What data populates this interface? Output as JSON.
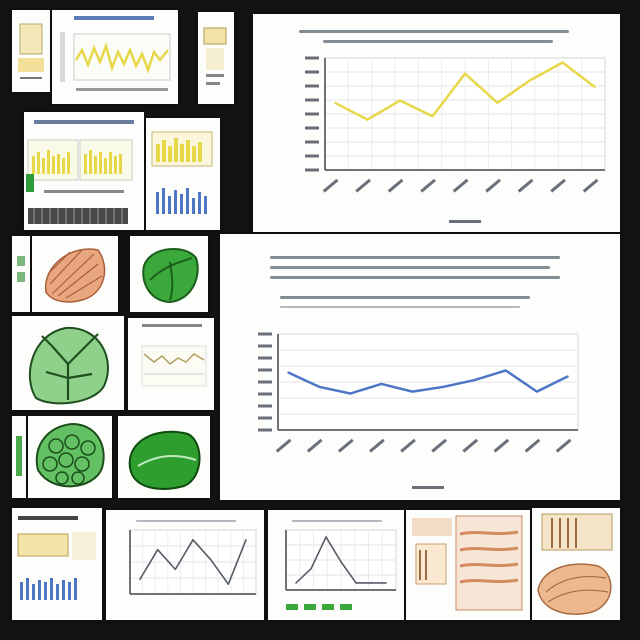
{
  "collage": {
    "background": "#121212",
    "chart_colors": {
      "yellow": "#e7d84a",
      "blue": "#4d77c4",
      "green": "#3aa83a",
      "peach": "#e9a77f",
      "grey_line": "#555c66"
    }
  },
  "chart_data": [
    {
      "type": "line",
      "series": [
        {
          "values": [
            6,
            4.5,
            6.2,
            4.8,
            8.6,
            6,
            8,
            9.6,
            7.4
          ]
        }
      ],
      "ylim": [
        0,
        10
      ],
      "grid": true
    },
    {
      "type": "line",
      "series": [
        {
          "values": [
            6,
            4.5,
            3.8,
            4.8,
            4,
            4.5,
            5.2,
            6.2,
            4,
            5.6
          ]
        }
      ],
      "ylim": [
        0,
        10
      ],
      "grid": true
    },
    {
      "type": "line",
      "series": [
        {
          "values": [
            3,
            6,
            4,
            7,
            5,
            2.5,
            7
          ]
        }
      ],
      "grid": true
    },
    {
      "type": "line",
      "series": [
        {
          "values": [
            1,
            3,
            7.5,
            4,
            1,
            1,
            1
          ]
        }
      ],
      "grid": true
    }
  ]
}
